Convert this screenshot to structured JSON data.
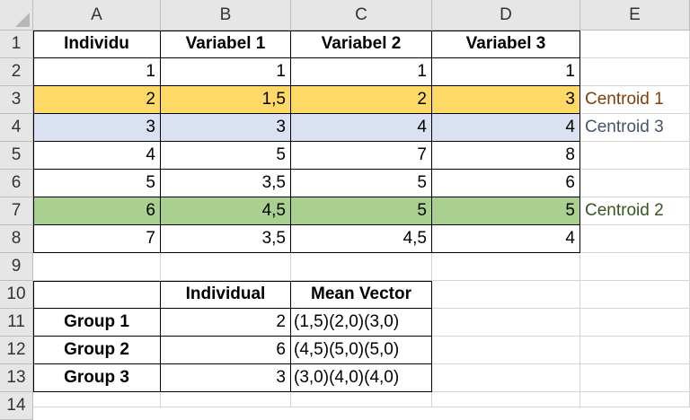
{
  "columns": [
    "A",
    "B",
    "C",
    "D",
    "E"
  ],
  "rows": [
    "1",
    "2",
    "3",
    "4",
    "5",
    "6",
    "7",
    "8",
    "9",
    "10",
    "11",
    "12",
    "13",
    "14"
  ],
  "colors": {
    "yellow": "#ffd966",
    "blue": "#d9e1f2",
    "green": "#a9d08e",
    "centroid1_text": "#833c0b",
    "centroid3_text": "#44546a",
    "centroid2_text": "#375623"
  },
  "table1": {
    "headers": [
      "Individu",
      "Variabel 1",
      "Variabel 2",
      "Variabel 3"
    ],
    "rows": [
      [
        "1",
        "1",
        "1",
        "1"
      ],
      [
        "2",
        "1,5",
        "2",
        "3"
      ],
      [
        "3",
        "3",
        "4",
        "4"
      ],
      [
        "4",
        "5",
        "7",
        "8"
      ],
      [
        "5",
        "3,5",
        "5",
        "6"
      ],
      [
        "6",
        "4,5",
        "5",
        "5"
      ],
      [
        "7",
        "3,5",
        "4,5",
        "4"
      ]
    ]
  },
  "labels": {
    "centroid1": "Centroid 1",
    "centroid3": "Centroid 3",
    "centroid2": "Centroid 2"
  },
  "table2": {
    "headers": [
      "Individual",
      "Mean Vector"
    ],
    "rows": [
      [
        "Group 1",
        "2",
        "(1,5)(2,0)(3,0)"
      ],
      [
        "Group 2",
        "6",
        "(4,5)(5,0)(5,0)"
      ],
      [
        "Group 3",
        "3",
        "(3,0)(4,0)(4,0)"
      ]
    ]
  }
}
